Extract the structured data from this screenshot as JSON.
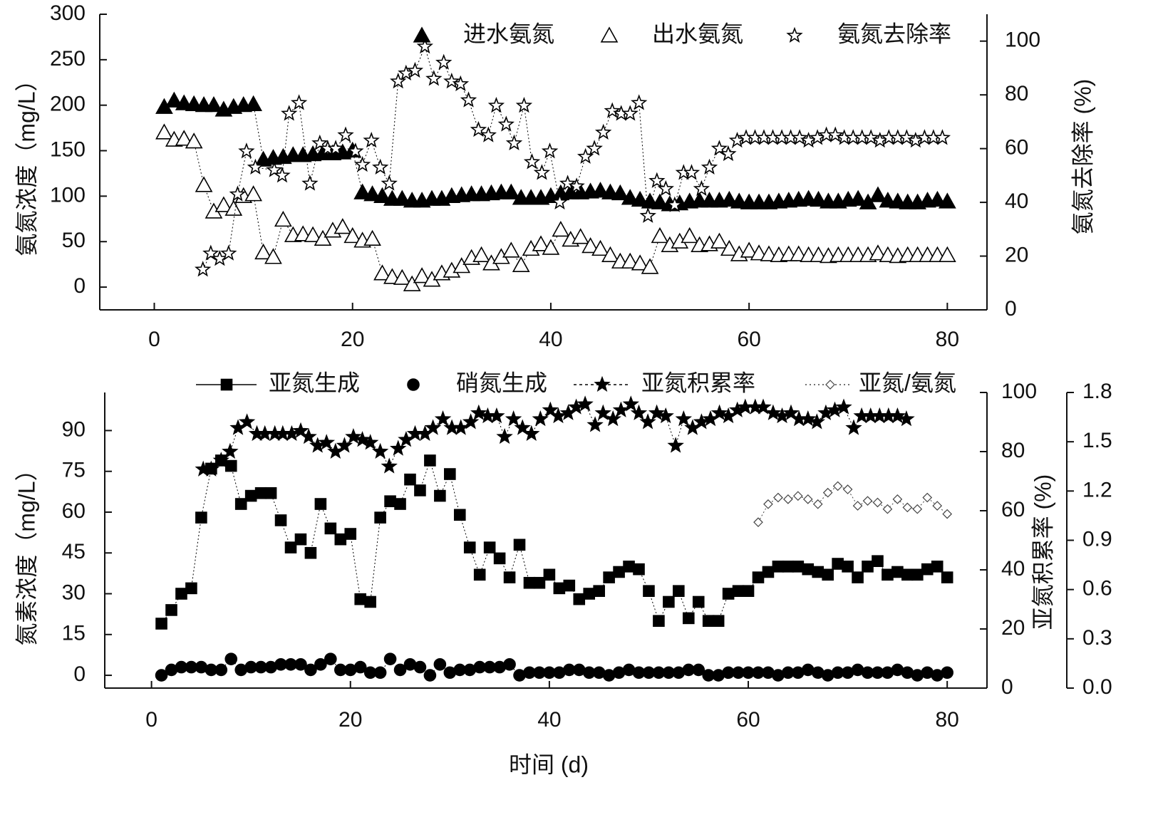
{
  "chart_data": [
    {
      "type": "line",
      "ylabel": "氨氮浓度（mg/L）",
      "y2label": "氨氮去除率 (%)",
      "xlim": [
        -5.5,
        84
      ],
      "xticks": [
        0,
        20,
        40,
        60,
        80
      ],
      "ylim": [
        -25,
        300
      ],
      "yticks": [
        0,
        50,
        100,
        150,
        200,
        250,
        300
      ],
      "y2lim": [
        0,
        110
      ],
      "y2ticks": [
        0,
        20,
        40,
        60,
        80,
        100
      ],
      "series": [
        {
          "name": "进水氨氮",
          "color": "#000000",
          "marker": "triangle-filled",
          "x": [
            1,
            2,
            3,
            4,
            5,
            6,
            7,
            8,
            9,
            10,
            11,
            12,
            13,
            14,
            15,
            16,
            17,
            18,
            19,
            20,
            21,
            22,
            23,
            24,
            25,
            26,
            27,
            28,
            29,
            30,
            31,
            32,
            33,
            34,
            35,
            36,
            37,
            38,
            39,
            40,
            41,
            42,
            43,
            44,
            45,
            46,
            47,
            48,
            49,
            50,
            51,
            52,
            53,
            54,
            55,
            56,
            57,
            58,
            59,
            60,
            61,
            62,
            63,
            64,
            65,
            66,
            67,
            68,
            69,
            70,
            71,
            72,
            73,
            74,
            75,
            76,
            77,
            78,
            79,
            80
          ],
          "values": [
            198,
            205,
            202,
            201,
            200,
            200,
            195,
            198,
            200,
            201,
            140,
            142,
            143,
            145,
            145,
            146,
            147,
            147,
            148,
            150,
            104,
            102,
            100,
            97,
            97,
            95,
            95,
            97,
            97,
            100,
            101,
            102,
            102,
            103,
            104,
            104,
            98,
            98,
            98,
            100,
            103,
            104,
            104,
            105,
            106,
            104,
            103,
            98,
            96,
            94,
            93,
            91,
            92,
            94,
            95,
            95,
            95,
            96,
            94,
            93,
            93,
            93,
            94,
            95,
            96,
            97,
            96,
            94,
            94,
            96,
            97,
            93,
            101,
            95,
            94,
            93,
            93,
            95,
            96,
            94
          ]
        },
        {
          "name": "出水氨氮",
          "color": "#000000",
          "marker": "triangle-open",
          "x": [
            1,
            2,
            3,
            4,
            5,
            6,
            7,
            8,
            9,
            10,
            11,
            12,
            13,
            14,
            15,
            16,
            17,
            18,
            19,
            20,
            21,
            22,
            23,
            24,
            25,
            26,
            27,
            28,
            29,
            30,
            31,
            32,
            33,
            34,
            35,
            36,
            37,
            38,
            39,
            40,
            41,
            42,
            43,
            44,
            45,
            46,
            47,
            48,
            49,
            50,
            51,
            52,
            53,
            54,
            55,
            56,
            57,
            58,
            59,
            60,
            61,
            62,
            63,
            64,
            65,
            66,
            67,
            68,
            69,
            70,
            71,
            72,
            73,
            74,
            75,
            76,
            77,
            78,
            79,
            80
          ],
          "values": [
            170,
            162,
            163,
            160,
            112,
            83,
            90,
            86,
            100,
            102,
            38,
            33,
            74,
            57,
            58,
            57,
            53,
            62,
            66,
            56,
            51,
            53,
            15,
            11,
            10,
            3,
            12,
            8,
            15,
            18,
            23,
            32,
            35,
            26,
            33,
            40,
            24,
            42,
            47,
            43,
            63,
            52,
            55,
            45,
            42,
            35,
            28,
            28,
            26,
            22,
            56,
            46,
            50,
            56,
            46,
            47,
            50,
            42,
            36,
            40,
            37,
            36,
            35,
            36,
            36,
            35,
            35,
            34,
            35,
            35,
            35,
            35,
            37,
            35,
            34,
            35,
            35,
            35,
            35,
            35
          ]
        },
        {
          "name": "氨氮去除率",
          "color": "#000000",
          "marker": "star-open",
          "axis": "y2",
          "x": [
            4.9,
            5.7,
            6.6,
            7.5,
            8.4,
            9.3,
            10.2,
            12.1,
            12.9,
            13.6,
            14.6,
            15.7,
            16.7,
            17.5,
            18.3,
            19.3,
            20.3,
            21.0,
            21.9,
            22.8,
            23.7,
            24.6,
            25.4,
            26.3,
            27.3,
            28.2,
            29.2,
            30.0,
            30.9,
            31.7,
            32.7,
            33.7,
            34.5,
            35.5,
            36.3,
            37.3,
            38.1,
            39.1,
            39.9,
            40.9,
            41.7,
            42.6,
            43.5,
            44.4,
            45.3,
            46.2,
            47.1,
            48.0,
            48.9,
            49.8,
            50.7,
            51.6,
            52.5,
            53.4,
            54.2,
            55.2,
            56.0,
            57.0,
            57.9,
            58.8,
            59.7,
            60.6,
            61.5,
            62.4,
            63.3,
            64.2,
            65.1,
            66.0,
            66.9,
            67.8,
            68.7,
            69.6,
            70.5,
            71.4,
            72.3,
            73.2,
            74.1,
            75.0,
            75.9,
            76.8,
            77.7,
            78.6,
            79.5
          ],
          "values": [
            15,
            21,
            19,
            21,
            43,
            59,
            53,
            52,
            50,
            73,
            77,
            47,
            62,
            60,
            60,
            65,
            59,
            54,
            63,
            53,
            47,
            85,
            88,
            89,
            98,
            86,
            92,
            85,
            84,
            78,
            67,
            65,
            76,
            69,
            62,
            76,
            55,
            51,
            59,
            40,
            47,
            46,
            57,
            60,
            66,
            74,
            73,
            73,
            77,
            35,
            48,
            45,
            39,
            51,
            51,
            45,
            53,
            60,
            58,
            63,
            64,
            64,
            64,
            64,
            64,
            64,
            64,
            63,
            64,
            65,
            65,
            64,
            64,
            64,
            64,
            63,
            64,
            64,
            64,
            63,
            64,
            64,
            64
          ]
        }
      ]
    },
    {
      "type": "line",
      "xlabel": "时间 (d)",
      "ylabel": "氮素浓度（mg/L）",
      "y2label": "亚氮积累率 (%)",
      "xlim": [
        -4.7,
        84
      ],
      "xticks": [
        0,
        20,
        40,
        60,
        80
      ],
      "ylim": [
        -4.7,
        104
      ],
      "yticks": [
        0,
        15,
        30,
        45,
        60,
        75,
        90
      ],
      "y2lim": [
        0,
        100
      ],
      "y2ticks": [
        0,
        20,
        40,
        60,
        80,
        100
      ],
      "y3lim": [
        0,
        1.8
      ],
      "y3ticks": [
        {
          "value": 0,
          "label": "0.0"
        },
        0.3,
        0.6,
        0.9,
        1.2,
        1.5,
        1.8
      ],
      "series": [
        {
          "name": "亚氮生成",
          "color": "#000000",
          "marker": "square-filled",
          "x": [
            1,
            2,
            3,
            4,
            5,
            6,
            7,
            8,
            9,
            10,
            11,
            12,
            13,
            14,
            15,
            16,
            17,
            18,
            19,
            20,
            21,
            22,
            23,
            24,
            25,
            26,
            27,
            28,
            29,
            30,
            31,
            32,
            33,
            34,
            35,
            36,
            37,
            38,
            39,
            40,
            41,
            42,
            43,
            44,
            45,
            46,
            47,
            48,
            49,
            50,
            51,
            52,
            53,
            54,
            55,
            56,
            57,
            58,
            59,
            60,
            61,
            62,
            63,
            64,
            65,
            66,
            67,
            68,
            69,
            70,
            71,
            72,
            73,
            74,
            75,
            76,
            77,
            78,
            79,
            80
          ],
          "values": [
            19,
            24,
            30,
            32,
            58,
            76,
            79,
            77,
            63,
            66,
            67,
            67,
            57,
            47,
            50,
            45,
            63,
            54,
            50,
            52,
            28,
            27,
            58,
            64,
            63,
            72,
            68,
            79,
            66,
            74,
            59,
            47,
            37,
            47,
            43,
            36,
            48,
            34,
            34,
            37,
            32,
            33,
            28,
            30,
            31,
            36,
            38,
            40,
            39,
            31,
            20,
            27,
            31,
            21,
            27,
            20,
            20,
            30,
            31,
            31,
            36,
            38,
            40,
            40,
            40,
            39,
            38,
            37,
            41,
            40,
            36,
            40,
            42,
            37,
            38,
            37,
            37,
            39,
            40,
            36
          ]
        },
        {
          "name": "硝氮生成",
          "color": "#000000",
          "marker": "circle-filled",
          "x": [
            1,
            2,
            3,
            4,
            5,
            6,
            7,
            8,
            9,
            10,
            11,
            12,
            13,
            14,
            15,
            16,
            17,
            18,
            19,
            20,
            21,
            22,
            23,
            24,
            25,
            26,
            27,
            28,
            29,
            30,
            31,
            32,
            33,
            34,
            35,
            36,
            37,
            38,
            39,
            40,
            41,
            42,
            43,
            44,
            45,
            46,
            47,
            48,
            49,
            50,
            51,
            52,
            53,
            54,
            55,
            56,
            57,
            58,
            59,
            60,
            61,
            62,
            63,
            64,
            65,
            66,
            67,
            68,
            69,
            70,
            71,
            72,
            73,
            74,
            75,
            76,
            77,
            78,
            79,
            80
          ],
          "values": [
            0,
            2,
            3,
            3,
            3,
            2,
            2,
            6,
            2,
            3,
            3,
            3,
            4,
            4,
            4,
            2,
            4,
            6,
            2,
            2,
            3,
            1,
            1,
            6,
            2,
            4,
            3,
            0,
            4,
            1,
            2,
            2,
            3,
            3,
            3,
            4,
            0,
            1,
            1,
            1,
            1,
            2,
            2,
            1,
            1,
            0,
            1,
            2,
            1,
            1,
            1,
            1,
            1,
            2,
            2,
            0,
            0,
            1,
            1,
            1,
            1,
            1,
            0,
            1,
            1,
            2,
            1,
            0,
            1,
            1,
            2,
            1,
            1,
            1,
            2,
            1,
            0,
            1,
            0,
            1
          ]
        },
        {
          "name": "亚氮积累率",
          "color": "#000000",
          "marker": "star-filled",
          "axis": "y2",
          "x": [
            5.2,
            6.0,
            7.0,
            7.9,
            8.7,
            9.6,
            10.6,
            11.4,
            12.4,
            13.2,
            14.1,
            15.0,
            15.8,
            16.7,
            17.6,
            18.5,
            19.4,
            20.3,
            21.2,
            22.0,
            23.0,
            23.9,
            24.8,
            25.6,
            26.5,
            27.5,
            28.3,
            29.3,
            30.2,
            31.1,
            32.1,
            32.9,
            33.8,
            34.7,
            35.5,
            36.4,
            37.3,
            38.2,
            39.1,
            40.1,
            40.9,
            41.9,
            42.7,
            43.6,
            44.6,
            45.4,
            46.4,
            47.2,
            48.2,
            49.0,
            49.9,
            50.8,
            51.7,
            52.7,
            53.5,
            54.4,
            55.3,
            56.2,
            57.1,
            58.0,
            58.9,
            59.7,
            60.7,
            61.5,
            62.5,
            63.4,
            64.3,
            65.1,
            66.0,
            66.9,
            67.8,
            68.7,
            69.6,
            70.6,
            71.4,
            72.3,
            73.2,
            74.1,
            75.0,
            75.9
          ],
          "values": [
            74,
            74,
            77,
            80,
            88,
            90,
            86,
            86,
            86,
            86,
            86,
            87,
            85,
            82,
            83,
            80,
            82,
            85,
            84,
            83,
            80,
            75,
            81,
            84,
            86,
            86,
            88,
            91,
            88,
            88,
            90,
            93,
            92,
            92,
            85,
            91,
            88,
            86,
            91,
            94,
            92,
            93,
            95,
            96,
            89,
            93,
            91,
            94,
            96,
            93,
            90,
            93,
            92,
            82,
            91,
            88,
            90,
            91,
            93,
            92,
            94,
            95,
            95,
            95,
            93,
            92,
            93,
            91,
            91,
            90,
            93,
            94,
            95,
            88,
            92,
            92,
            92,
            92,
            92,
            91
          ]
        },
        {
          "name": "亚氮/氨氮",
          "color": "#444444",
          "marker": "diamond-open",
          "axis": "y3",
          "x": [
            61,
            62,
            63,
            64,
            65,
            66,
            67,
            68,
            69,
            70,
            71,
            72,
            73,
            74,
            75,
            76,
            77,
            78,
            79,
            80
          ],
          "values": [
            1.01,
            1.12,
            1.16,
            1.15,
            1.17,
            1.15,
            1.12,
            1.19,
            1.23,
            1.21,
            1.11,
            1.14,
            1.13,
            1.09,
            1.15,
            1.1,
            1.09,
            1.16,
            1.11,
            1.06
          ]
        }
      ]
    }
  ]
}
